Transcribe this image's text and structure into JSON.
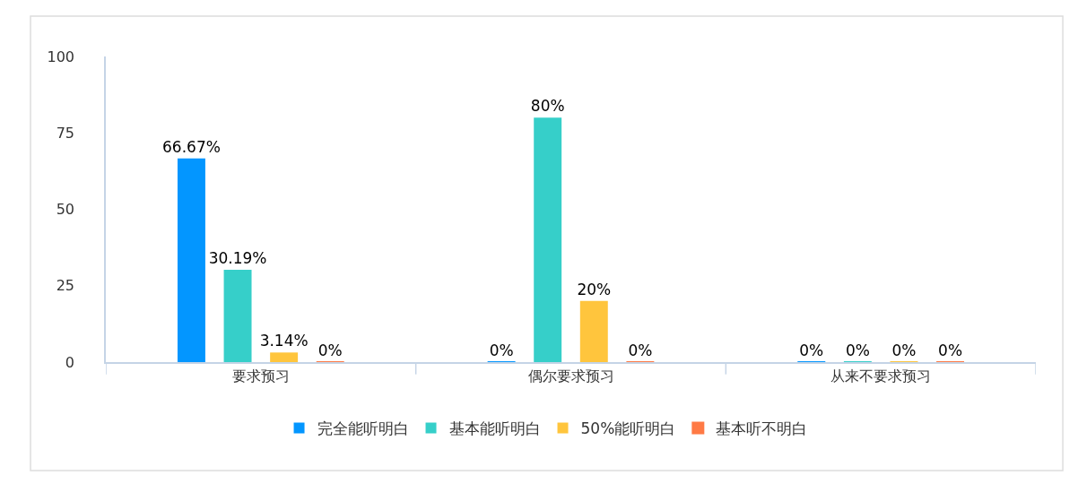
{
  "chart_data": {
    "type": "bar",
    "categories": [
      "要求预习",
      "偶尔要求预习",
      "从来不要求预习"
    ],
    "series": [
      {
        "name": "完全能听明白",
        "color": "#0396ff",
        "values": [
          66.67,
          0,
          0
        ],
        "value_labels": [
          "66.67%",
          "0%",
          "0%"
        ]
      },
      {
        "name": "基本能听明白",
        "color": "#36cfc9",
        "values": [
          30.19,
          80,
          0
        ],
        "value_labels": [
          "30.19%",
          "80%",
          "0%"
        ]
      },
      {
        "name": "50%能听明白",
        "color": "#ffc53d",
        "values": [
          3.14,
          20,
          0
        ],
        "value_labels": [
          "3.14%",
          "20%",
          "0%"
        ]
      },
      {
        "name": "基本听不明白",
        "color": "#ff7a45",
        "values": [
          0,
          0,
          0
        ],
        "value_labels": [
          "0%",
          "0%",
          "0%"
        ]
      }
    ],
    "ylim": [
      0,
      100
    ],
    "yticks": [
      0,
      25,
      50,
      75,
      100
    ],
    "grid": false,
    "legend": "bottom"
  }
}
